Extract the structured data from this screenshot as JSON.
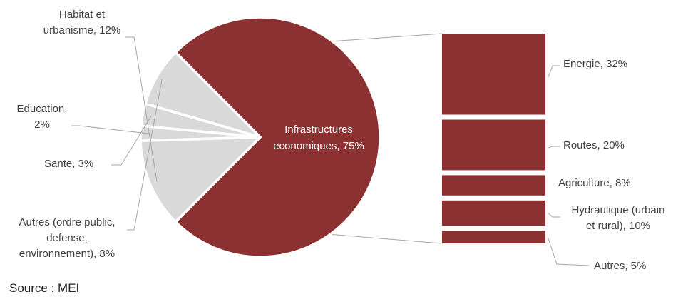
{
  "chart_data": {
    "type": "pie",
    "subtype": "pie-of-bar",
    "colors": {
      "main": "#8b3131",
      "other": "#d9d9d9",
      "leader": "#a6a6a6"
    },
    "pie": [
      {
        "label": "Infrastructures economiques",
        "value": 75,
        "text_line1": "Infrastructures",
        "text_line2": "economiques, 75%"
      },
      {
        "label": "Autres (ordre public, defense, environnement)",
        "value": 8,
        "text_line1": "Autres (ordre public,",
        "text_line2": "defense,",
        "text_line3": "environnement), 8%"
      },
      {
        "label": "Sante",
        "value": 3,
        "text": "Sante, 3%"
      },
      {
        "label": "Education",
        "value": 2,
        "text_line1": "Education,",
        "text_line2": "2%"
      },
      {
        "label": "Habitat et urbanisme",
        "value": 12,
        "text_line1": "Habitat et",
        "text_line2": "urbanisme, 12%"
      }
    ],
    "bar": [
      {
        "label": "Energie",
        "value": 32,
        "text": "Energie, 32%"
      },
      {
        "label": "Routes",
        "value": 20,
        "text": "Routes, 20%"
      },
      {
        "label": "Agriculture",
        "value": 8,
        "text": "Agriculture, 8%"
      },
      {
        "label": "Hydraulique (urbain et rural)",
        "value": 10,
        "text_line1": "Hydraulique (urbain",
        "text_line2": "et rural), 10%"
      },
      {
        "label": "Autres",
        "value": 5,
        "text": "Autres, 5%"
      }
    ],
    "source": "Source : MEI"
  }
}
